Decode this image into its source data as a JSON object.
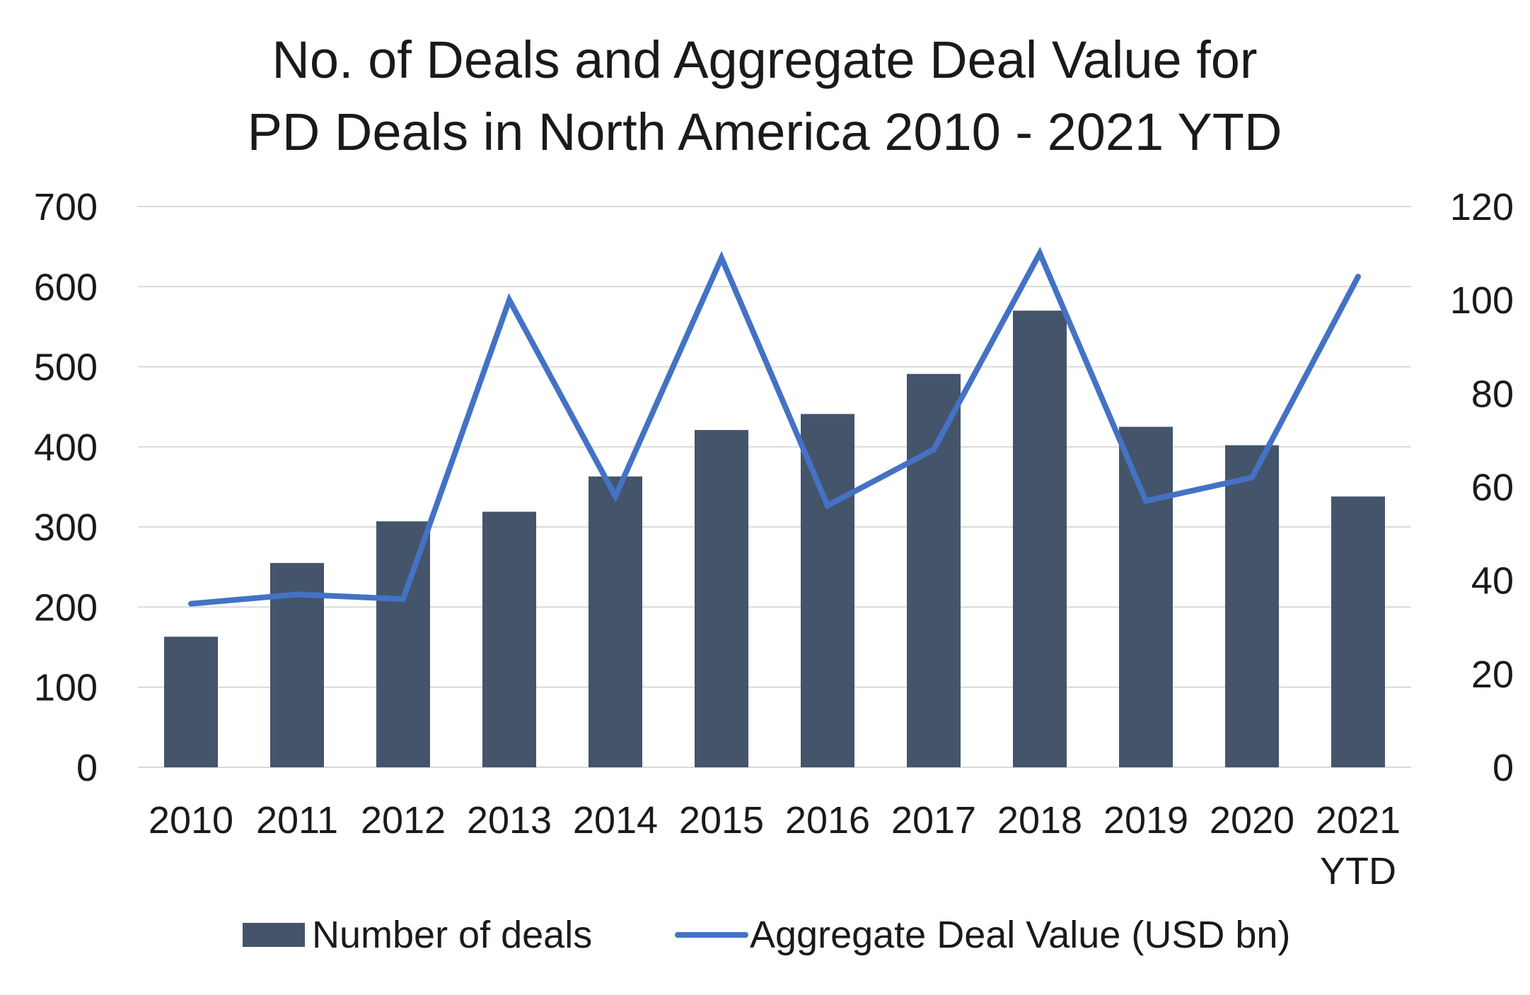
{
  "chart_data": {
    "type": "bar",
    "title_lines": [
      "No. of Deals and Aggregate Deal Value for",
      "PD Deals in North America 2010 - 2021 YTD"
    ],
    "categories": [
      "2010",
      "2011",
      "2012",
      "2013",
      "2014",
      "2015",
      "2016",
      "2017",
      "2018",
      "2019",
      "2020",
      "2021 YTD"
    ],
    "category_lines": [
      [
        "2010"
      ],
      [
        "2011"
      ],
      [
        "2012"
      ],
      [
        "2013"
      ],
      [
        "2014"
      ],
      [
        "2015"
      ],
      [
        "2016"
      ],
      [
        "2017"
      ],
      [
        "2018"
      ],
      [
        "2019"
      ],
      [
        "2020"
      ],
      [
        "2021",
        "YTD"
      ]
    ],
    "series": [
      {
        "name": "Number of deals",
        "type": "bar",
        "axis": "left",
        "color": "#44546a",
        "values": [
          163,
          255,
          307,
          319,
          363,
          421,
          441,
          491,
          570,
          425,
          402,
          338
        ]
      },
      {
        "name": "Aggregate Deal Value (USD bn)",
        "type": "line",
        "axis": "right",
        "color": "#4472c4",
        "values": [
          35,
          37,
          36,
          100,
          58,
          109,
          56,
          68,
          110,
          57,
          62,
          105
        ]
      }
    ],
    "y_left": {
      "range": [
        0,
        700
      ],
      "ticks": [
        "0",
        "100",
        "200",
        "300",
        "400",
        "500",
        "600",
        "700"
      ]
    },
    "y_right": {
      "range": [
        0,
        120
      ],
      "ticks": [
        "0",
        "20",
        "40",
        "60",
        "80",
        "100",
        "120"
      ]
    },
    "grid": "horizontal",
    "legend_position": "bottom"
  }
}
